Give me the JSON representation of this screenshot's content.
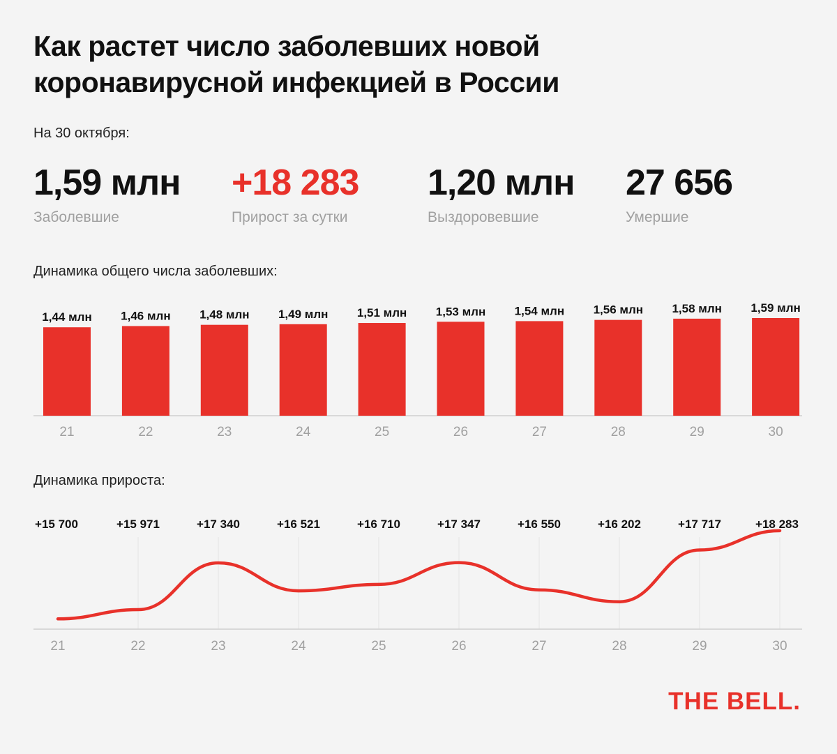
{
  "title": "Как растет число заболевших новой коронавирусной инфекцией в России",
  "date_label": "На 30 октября:",
  "stats": [
    {
      "value": "1,59 млн",
      "label": "Заболевшие"
    },
    {
      "value": "+18 283",
      "label": "Прирост за сутки"
    },
    {
      "value": "1,20 млн",
      "label": "Выздоровевшие"
    },
    {
      "value": "27 656",
      "label": "Умершие"
    }
  ],
  "colors": {
    "accent": "#e8312a",
    "text": "#111111",
    "muted": "#a0a0a0",
    "axis": "#cfcfcf",
    "grid": "#e4e4e4"
  },
  "logo": "THE BELL.",
  "chart_data": [
    {
      "type": "bar",
      "title": "Динамика общего числа заболевших:",
      "categories": [
        "21",
        "22",
        "23",
        "24",
        "25",
        "26",
        "27",
        "28",
        "29",
        "30"
      ],
      "values": [
        1.44,
        1.46,
        1.48,
        1.49,
        1.51,
        1.53,
        1.54,
        1.56,
        1.58,
        1.59
      ],
      "data_labels": [
        "1,44 млн",
        "1,46 млн",
        "1,48 млн",
        "1,49 млн",
        "1,51 млн",
        "1,53 млн",
        "1,54 млн",
        "1,56 млн",
        "1,58 млн",
        "1,59 млн"
      ],
      "unit": "млн",
      "ylim": [
        0,
        1.59
      ],
      "grid": false
    },
    {
      "type": "line",
      "title": "Динамика прироста:",
      "categories": [
        "21",
        "22",
        "23",
        "24",
        "25",
        "26",
        "27",
        "28",
        "29",
        "30"
      ],
      "values": [
        15700,
        15971,
        17340,
        16521,
        16710,
        17347,
        16550,
        16202,
        17717,
        18283
      ],
      "data_labels": [
        "+15 700",
        "+15 971",
        "+17 340",
        "+16 521",
        "+16 710",
        "+17 347",
        "+16 550",
        "+16 202",
        "+17 717",
        "+18 283"
      ],
      "ylim": [
        15400,
        18300
      ],
      "grid": "vertical",
      "smooth": true
    }
  ]
}
